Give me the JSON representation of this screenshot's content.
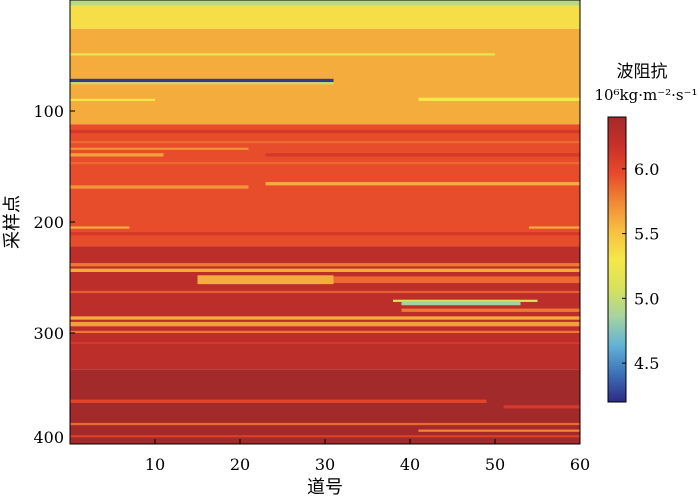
{
  "chart_data": {
    "type": "heatmap",
    "xlabel": "道号",
    "ylabel": "采样点",
    "xlim": [
      1,
      60
    ],
    "ylim": [
      0,
      400
    ],
    "y_reversed": true,
    "xticks": [
      10,
      20,
      30,
      40,
      50,
      60
    ],
    "yticks": [
      100,
      200,
      300,
      400
    ],
    "colorbar": {
      "title": "波阻抗",
      "unit": "10⁶kg·m⁻²·s⁻¹",
      "range": [
        4.2,
        6.4
      ],
      "ticks": [
        4.5,
        5.0,
        5.5,
        6.0
      ],
      "colormap": [
        "#2e2a85",
        "#3d72b8",
        "#62b3d6",
        "#a6d3a0",
        "#d8e25a",
        "#f5e74a",
        "#f6c040",
        "#f08a35",
        "#e84a2a",
        "#c8302a",
        "#a32a2a"
      ]
    },
    "layers": [
      {
        "y0": 0,
        "y1": 5,
        "x0": 0,
        "x1": 60,
        "value": 4.95
      },
      {
        "y0": 5,
        "y1": 26,
        "x0": 0,
        "x1": 60,
        "value": 5.35
      },
      {
        "y0": 26,
        "y1": 112,
        "x0": 0,
        "x1": 60,
        "value": 5.6
      },
      {
        "y0": 48,
        "y1": 50,
        "x0": 0,
        "x1": 50,
        "value": 5.2
      },
      {
        "y0": 71,
        "y1": 74,
        "x0": 0,
        "x1": 31,
        "value": 4.25
      },
      {
        "y0": 74,
        "y1": 76,
        "x0": 0,
        "x1": 31,
        "value": 5.0
      },
      {
        "y0": 89,
        "y1": 91,
        "x0": 0,
        "x1": 10,
        "value": 5.3
      },
      {
        "y0": 88,
        "y1": 91,
        "x0": 41,
        "x1": 60,
        "value": 5.3
      },
      {
        "y0": 112,
        "y1": 222,
        "x0": 0,
        "x1": 60,
        "value": 5.95
      },
      {
        "y0": 117,
        "y1": 120,
        "x0": 0,
        "x1": 60,
        "value": 6.1
      },
      {
        "y0": 127,
        "y1": 129,
        "x0": 0,
        "x1": 60,
        "value": 5.85
      },
      {
        "y0": 133,
        "y1": 135,
        "x0": 0,
        "x1": 21,
        "value": 5.7
      },
      {
        "y0": 138,
        "y1": 141,
        "x0": 0,
        "x1": 11,
        "value": 5.65
      },
      {
        "y0": 138,
        "y1": 141,
        "x0": 23,
        "x1": 60,
        "value": 6.1
      },
      {
        "y0": 146,
        "y1": 148,
        "x0": 0,
        "x1": 60,
        "value": 5.85
      },
      {
        "y0": 164,
        "y1": 167,
        "x0": 23,
        "x1": 60,
        "value": 5.6
      },
      {
        "y0": 167,
        "y1": 170,
        "x0": 0,
        "x1": 21,
        "value": 5.7
      },
      {
        "y0": 204,
        "y1": 206,
        "x0": 0,
        "x1": 7,
        "value": 5.6
      },
      {
        "y0": 204,
        "y1": 206,
        "x0": 54,
        "x1": 60,
        "value": 5.6
      },
      {
        "y0": 209,
        "y1": 212,
        "x0": 0,
        "x1": 60,
        "value": 6.1
      },
      {
        "y0": 222,
        "y1": 333,
        "x0": 0,
        "x1": 60,
        "value": 6.25
      },
      {
        "y0": 237,
        "y1": 240,
        "x0": 0,
        "x1": 60,
        "value": 5.8
      },
      {
        "y0": 242,
        "y1": 245,
        "x0": 0,
        "x1": 60,
        "value": 5.6
      },
      {
        "y0": 248,
        "y1": 256,
        "x0": 15,
        "x1": 31,
        "value": 5.6
      },
      {
        "y0": 249,
        "y1": 255,
        "x0": 31,
        "x1": 60,
        "value": 5.85
      },
      {
        "y0": 262,
        "y1": 264,
        "x0": 0,
        "x1": 60,
        "value": 5.9
      },
      {
        "y0": 270,
        "y1": 272,
        "x0": 38,
        "x1": 55,
        "value": 5.1
      },
      {
        "y0": 272,
        "y1": 275,
        "x0": 39,
        "x1": 53,
        "value": 4.85
      },
      {
        "y0": 278,
        "y1": 281,
        "x0": 39,
        "x1": 60,
        "value": 5.8
      },
      {
        "y0": 285,
        "y1": 288,
        "x0": 0,
        "x1": 60,
        "value": 5.6
      },
      {
        "y0": 290,
        "y1": 294,
        "x0": 0,
        "x1": 60,
        "value": 5.65
      },
      {
        "y0": 298,
        "y1": 300,
        "x0": 0,
        "x1": 60,
        "value": 5.8
      },
      {
        "y0": 308,
        "y1": 310,
        "x0": 0,
        "x1": 60,
        "value": 6.1
      },
      {
        "y0": 333,
        "y1": 400,
        "x0": 0,
        "x1": 60,
        "value": 6.4
      },
      {
        "y0": 360,
        "y1": 363,
        "x0": 0,
        "x1": 49,
        "value": 6.0
      },
      {
        "y0": 365,
        "y1": 368,
        "x0": 51,
        "x1": 60,
        "value": 6.1
      },
      {
        "y0": 381,
        "y1": 383,
        "x0": 0,
        "x1": 60,
        "value": 5.85
      },
      {
        "y0": 387,
        "y1": 389,
        "x0": 41,
        "x1": 60,
        "value": 5.75
      },
      {
        "y0": 392,
        "y1": 394,
        "x0": 0,
        "x1": 60,
        "value": 6.05
      }
    ]
  }
}
